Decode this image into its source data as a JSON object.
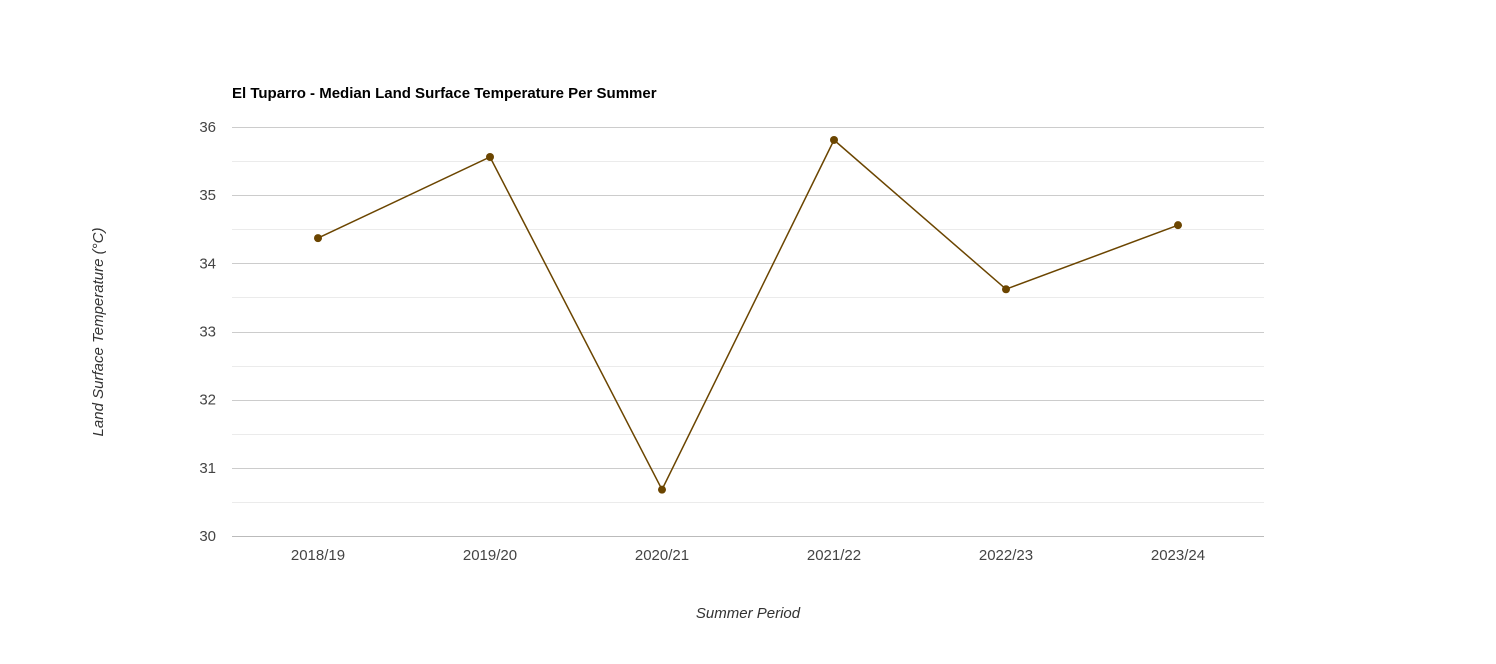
{
  "chart_data": {
    "type": "line",
    "title": "El Tuparro - Median Land Surface Temperature Per Summer",
    "xlabel": "Summer Period",
    "ylabel": "Land Surface Temperature (°C)",
    "categories": [
      "2018/19",
      "2019/20",
      "2020/21",
      "2021/22",
      "2022/23",
      "2023/24"
    ],
    "series": [
      {
        "values": [
          34.37,
          35.56,
          30.68,
          35.81,
          33.62,
          34.56
        ],
        "color": "#6b4500"
      }
    ],
    "ylim": [
      30,
      36
    ],
    "yticks": [
      "30",
      "31",
      "32",
      "33",
      "34",
      "35",
      "36"
    ],
    "grid": true,
    "minor_grid": true,
    "legend": "none"
  }
}
